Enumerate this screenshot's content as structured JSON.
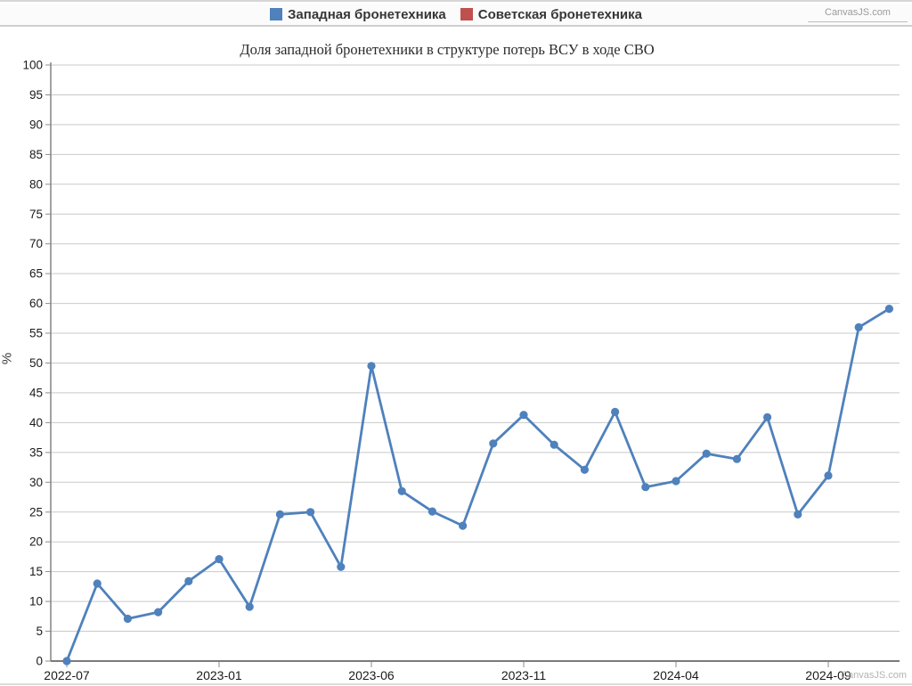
{
  "page": {
    "top_credit": "CanvasJS.com",
    "bottom_credit": "CanvasJS.com"
  },
  "legend": {
    "items": [
      {
        "label": "Западная бронетехника",
        "color": "#4F81BC"
      },
      {
        "label": "Советская бронетехника",
        "color": "#C0504E"
      }
    ]
  },
  "chart_data": {
    "type": "line",
    "title": "Доля западной бронетехники в структуре потерь ВСУ в ходе СВО",
    "xlabel": "",
    "ylabel": "%",
    "ylim": [
      0,
      100
    ],
    "y_interval": 5,
    "grid": true,
    "legend_position": "top",
    "y_ticks": [
      0,
      5,
      10,
      15,
      20,
      25,
      30,
      35,
      40,
      45,
      50,
      55,
      60,
      65,
      70,
      75,
      80,
      85,
      90,
      95,
      100
    ],
    "x_tick_labels": [
      "2022-07",
      "2023-01",
      "2023-06",
      "2023-11",
      "2024-04",
      "2024-09"
    ],
    "x_tick_indices": [
      0,
      5,
      10,
      15,
      20,
      25
    ],
    "point_count": 28,
    "series": [
      {
        "name": "Западная бронетехника",
        "color": "#4F81BC",
        "values": [
          0,
          13,
          7.1,
          8.2,
          13.4,
          17.1,
          9.1,
          24.6,
          25,
          15.8,
          49.5,
          28.5,
          25.1,
          22.7,
          36.5,
          41.3,
          36.3,
          32.1,
          41.8,
          29.2,
          30.2,
          34.8,
          33.9,
          40.9,
          24.6,
          31.1,
          56,
          59.1
        ]
      },
      {
        "name": "Советская бронетехника",
        "color": "#C0504E",
        "values": []
      }
    ]
  }
}
